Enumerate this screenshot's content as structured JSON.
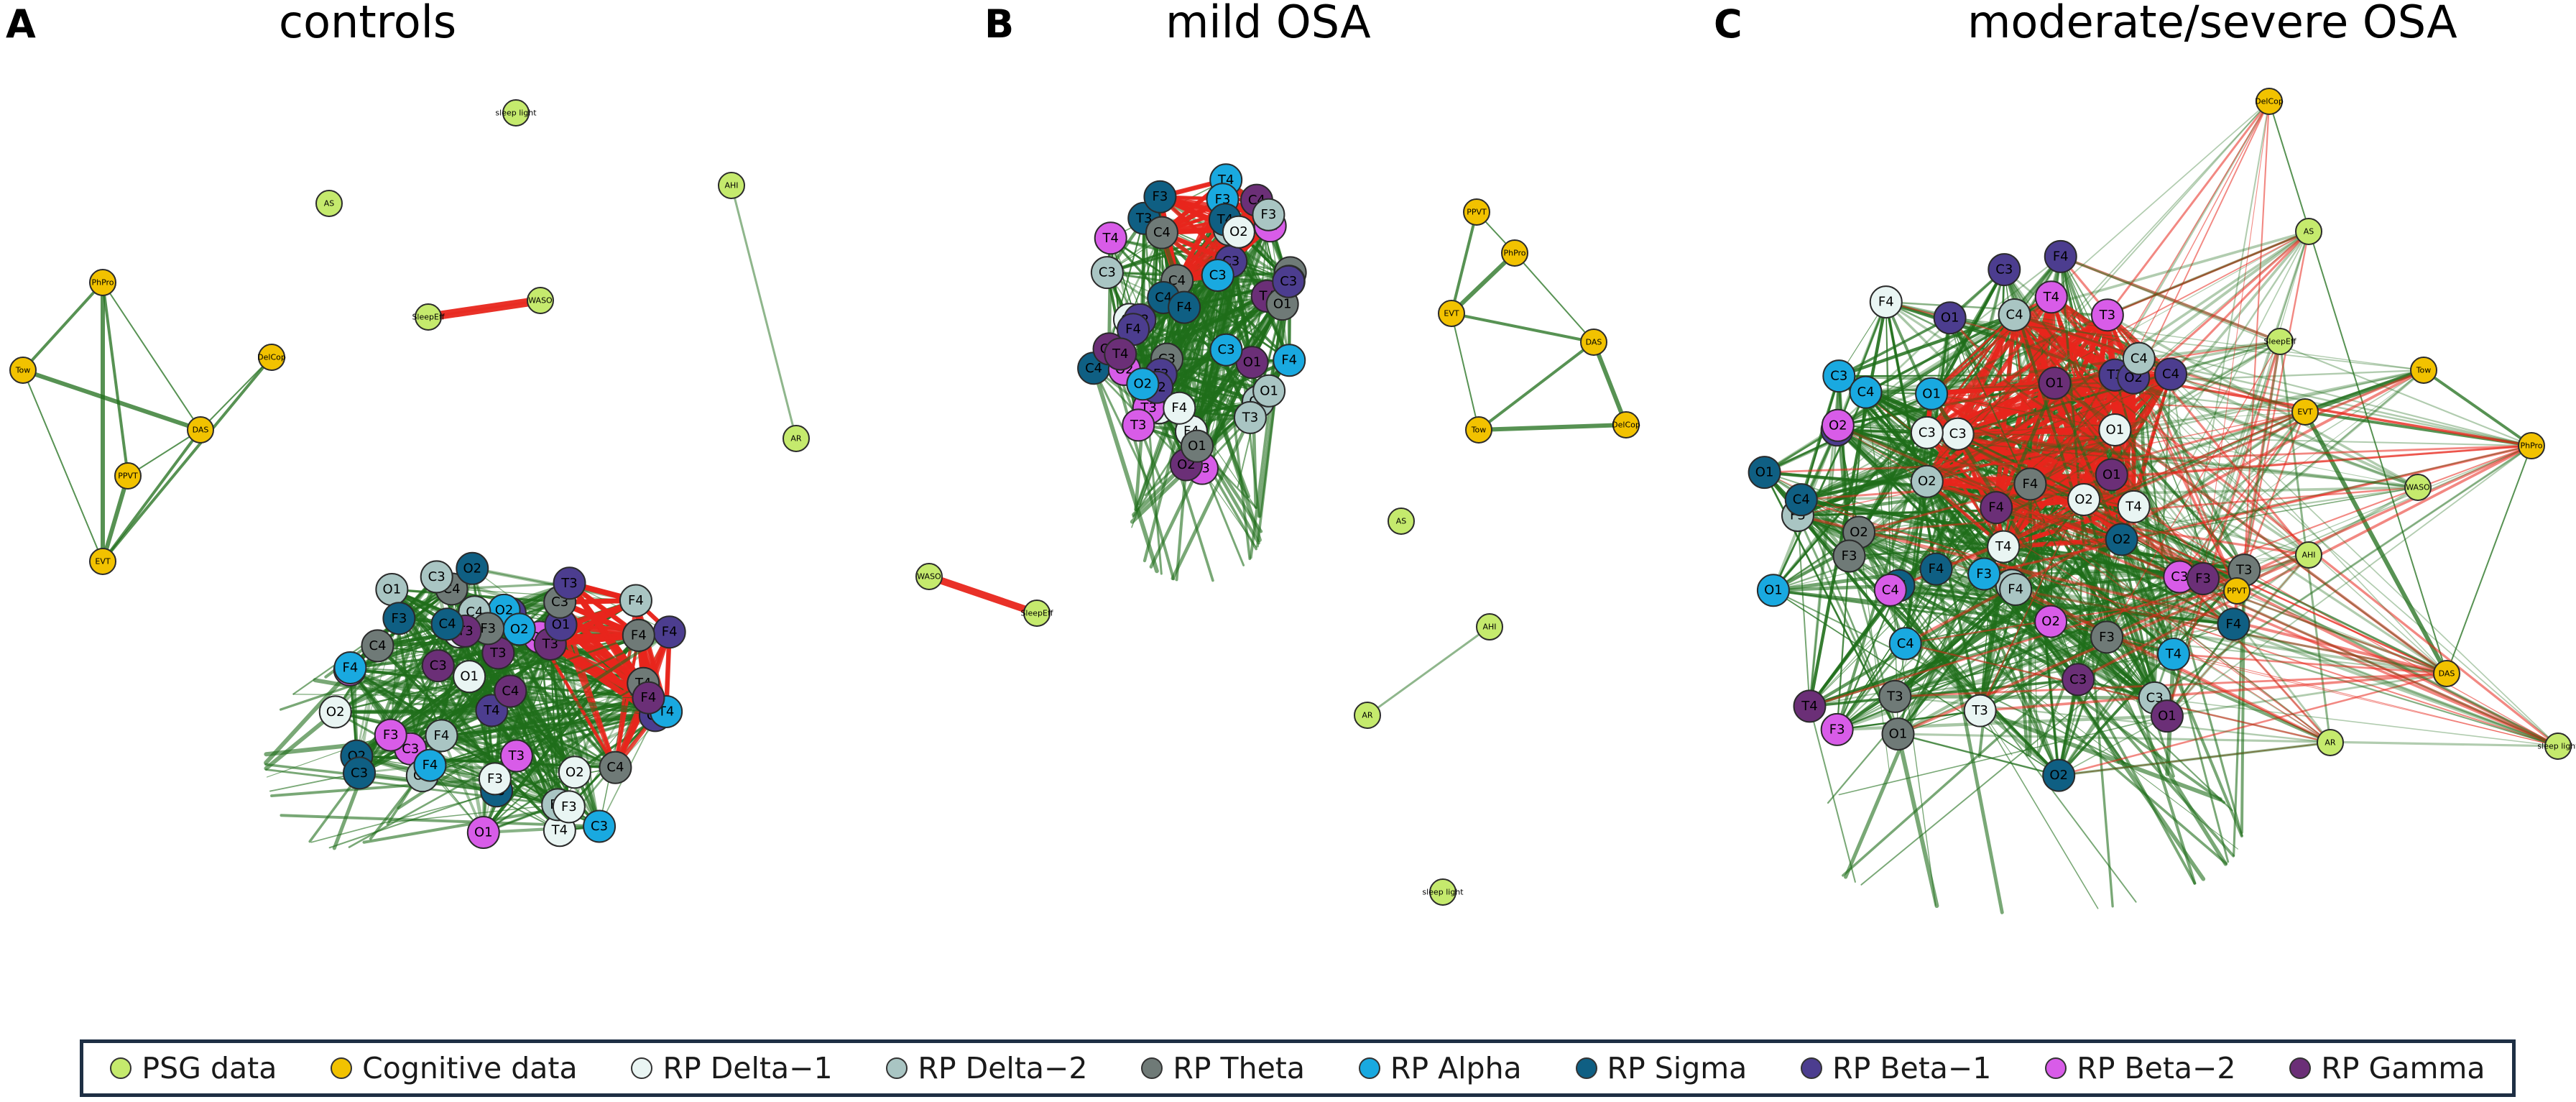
{
  "panels": [
    {
      "letter": "A",
      "title": "controls"
    },
    {
      "letter": "B",
      "title": "mild OSA"
    },
    {
      "letter": "C",
      "title": "moderate/severe OSA"
    }
  ],
  "colors": {
    "psg": "#c5ea6d",
    "cognitive": "#f2c200",
    "delta1": "#e9f5f3",
    "delta2": "#a9c5c3",
    "theta": "#6f7a77",
    "alpha": "#19a9e0",
    "sigma": "#0f5f83",
    "beta1": "#4c3d8f",
    "beta2": "#d85ce8",
    "gamma": "#6b2f77",
    "edge_positive": "#1f6e1a",
    "edge_negative": "#e8261c"
  },
  "legend": [
    {
      "label": "PSG data",
      "color": "#c5ea6d"
    },
    {
      "label": "Cognitive data",
      "color": "#f2c200"
    },
    {
      "label": "RP Delta−1",
      "color": "#e9f5f3"
    },
    {
      "label": "RP Delta−2",
      "color": "#a9c5c3"
    },
    {
      "label": "RP Theta",
      "color": "#6f7a77"
    },
    {
      "label": "RP Alpha",
      "color": "#19a9e0"
    },
    {
      "label": "RP Sigma",
      "color": "#0f5f83"
    },
    {
      "label": "RP Beta−1",
      "color": "#4c3d8f"
    },
    {
      "label": "RP Beta−2",
      "color": "#d85ce8"
    },
    {
      "label": "RP Gamma",
      "color": "#6b2f77"
    }
  ],
  "networks": [
    {
      "panel": "A",
      "isolated_labels": [
        "AHI",
        "AS",
        "AR",
        "sleep light",
        "WASO",
        "SleepEff"
      ],
      "cognitive_labels": [
        "PhPro",
        "Tow",
        "DelCop",
        "DAS",
        "PPVT",
        "EVT"
      ],
      "eeg_labels": [
        "T3",
        "O1",
        "C4",
        "C3",
        "O2",
        "C4",
        "O1",
        "C3",
        "T4",
        "F4",
        "C4",
        "O2",
        "C3",
        "F4",
        "C3",
        "T3",
        "O2",
        "O1",
        "T4",
        "O2",
        "O2",
        "O1",
        "O1",
        "T3",
        "O1",
        "C4",
        "F3",
        "F4",
        "C3",
        "T4",
        "T3",
        "C4",
        "F3",
        "F4",
        "C3",
        "F4",
        "F3",
        "C4",
        "F3",
        "T3",
        "O2",
        "F3",
        "F4",
        "T4",
        "C4",
        "T3",
        "O1",
        "F4",
        "F3",
        "C3",
        "C4"
      ]
    },
    {
      "panel": "B",
      "isolated_labels": [
        "AS",
        "AHI",
        "AR",
        "sleep light",
        "WASO",
        "SleepEff"
      ],
      "cognitive_labels": [
        "PPVT",
        "PhPro",
        "EVT",
        "DAS",
        "Tow",
        "DelCop"
      ],
      "eeg_labels": [
        "C3",
        "T3",
        "C4",
        "T4",
        "T3",
        "O2",
        "C4",
        "O1",
        "O2",
        "O1",
        "C3",
        "F3",
        "C4",
        "C3",
        "T3",
        "T4",
        "F4",
        "C3",
        "O1",
        "F4",
        "T4",
        "F3",
        "F3",
        "C4",
        "O2",
        "O1",
        "F4",
        "C3",
        "C4",
        "F4",
        "T4",
        "O2",
        "C3",
        "T3",
        "O1",
        "C3",
        "F3",
        "O2",
        "O2",
        "O1",
        "F4",
        "F3",
        "C4",
        "O2",
        "F4",
        "C3",
        "T3",
        "T4"
      ]
    },
    {
      "panel": "C",
      "isolated_labels": [
        "AS",
        "SleepEff",
        "WASO",
        "AHI",
        "AR",
        "sleep light"
      ],
      "cognitive_labels": [
        "DelCop",
        "Tow",
        "EVT",
        "PhPro",
        "PPVT",
        "DAS"
      ],
      "eeg_labels": [
        "C3",
        "C4",
        "F4",
        "C4",
        "F4",
        "C3",
        "T3",
        "F4",
        "T3",
        "T4",
        "O1",
        "O1",
        "O2",
        "F3",
        "O2",
        "O1",
        "T4",
        "C3",
        "F3",
        "C3",
        "T4",
        "O1",
        "C4",
        "T4",
        "C3",
        "O2",
        "O2",
        "C4",
        "O2",
        "F4",
        "C3",
        "O1",
        "O2",
        "F3",
        "T3",
        "O1",
        "C4",
        "T3",
        "T4",
        "C3",
        "F4",
        "F4",
        "F3",
        "F3",
        "O1",
        "O2",
        "O2",
        "F3",
        "O1",
        "C4",
        "T3",
        "T4",
        "F4",
        "C4",
        "F3",
        "O1",
        "T4"
      ]
    }
  ]
}
